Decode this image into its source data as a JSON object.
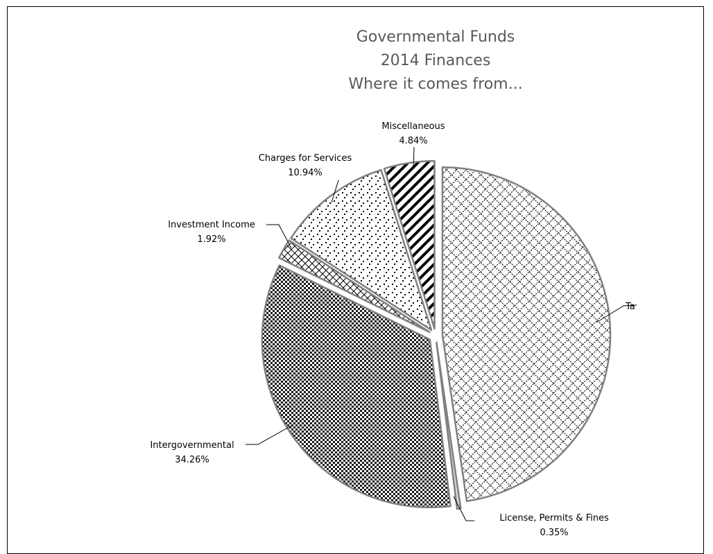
{
  "chart_data": {
    "type": "pie",
    "title": [
      "Governmental Funds",
      "2014 Finances",
      "Where it comes from..."
    ],
    "slices": [
      {
        "name": "Taxes",
        "label_visible": "Ta",
        "value": 47.69,
        "value_label": "",
        "pattern": "diamond-lattice"
      },
      {
        "name": "License, Permits & Fines",
        "value": 0.35,
        "value_label": "0.35%",
        "pattern": "solid-light"
      },
      {
        "name": "Intergovernmental",
        "value": 34.26,
        "value_label": "34.26%",
        "pattern": "dense-checker"
      },
      {
        "name": "Investment Income",
        "value": 1.92,
        "value_label": "1.92%",
        "pattern": "crosshatch"
      },
      {
        "name": "Charges for Services",
        "value": 10.94,
        "value_label": "10.94%",
        "pattern": "sparse-dots"
      },
      {
        "name": "Miscellaneous",
        "value": 4.84,
        "value_label": "4.84%",
        "pattern": "diagonal-stripes"
      }
    ],
    "start_angle_deg": 0,
    "direction": "clockwise",
    "exploded": true,
    "legend": "none",
    "colors": {
      "outline": "#7f7f7f",
      "pattern_ink": "#000000",
      "background": "#ffffff",
      "title": "#595959"
    }
  }
}
